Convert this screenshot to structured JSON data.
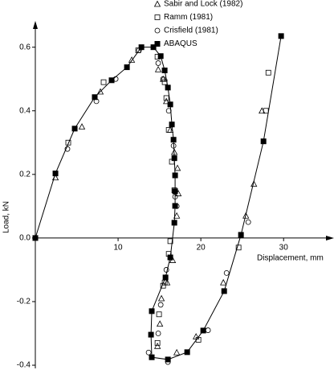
{
  "chart_data": {
    "type": "scatter",
    "xlabel": "Displacement, mm",
    "ylabel": "Load, kN",
    "xlim": [
      0,
      35.8
    ],
    "ylim": [
      -0.41,
      0.67
    ],
    "xticks": [
      10,
      20,
      30
    ],
    "yticks": [
      -0.4,
      -0.2,
      {
        "value": 0,
        "label": "0.0"
      },
      0.2,
      0.4,
      0.6
    ],
    "legend": "top-right",
    "series": [
      {
        "name": "Sabir and Lock (1982)",
        "marker": "triangle",
        "color": "#000000",
        "x": [
          2.43,
          5.63,
          7.86,
          11.65,
          14.85,
          15.44,
          15.83,
          16.31,
          16.8,
          17.18,
          17.28,
          17.09,
          16.6,
          15.92,
          15.24,
          15.05,
          14.76,
          17.09,
          19.42,
          22.72,
          25.44,
          26.41,
          27.38
        ],
        "values": [
          0.19,
          0.35,
          0.46,
          0.56,
          0.53,
          0.5,
          0.43,
          0.34,
          0.27,
          0.22,
          0.14,
          0.07,
          -0.07,
          -0.14,
          -0.19,
          -0.27,
          -0.34,
          -0.36,
          -0.31,
          -0.14,
          0.07,
          0.17,
          0.4
        ]
      },
      {
        "name": "Ramm (1981)",
        "marker": "square-open",
        "color": "#000000",
        "x": [
          3.98,
          8.25,
          12.43,
          14.76,
          15.63,
          15.83,
          16.12,
          16.5,
          16.8,
          16.31,
          16.12,
          15.63,
          15.44,
          14.95,
          14.76,
          19.71,
          24.56,
          27.86,
          28.16
        ],
        "values": [
          0.3,
          0.49,
          0.59,
          0.57,
          0.49,
          0.44,
          0.34,
          0.24,
          0.15,
          -0.01,
          -0.05,
          -0.14,
          -0.15,
          -0.24,
          -0.33,
          -0.32,
          -0.03,
          0.4,
          0.52
        ]
      },
      {
        "name": "Crisfield (1981)",
        "marker": "circle",
        "color": "#000000",
        "x": [
          3.88,
          7.38,
          9.71,
          12.52,
          14.85,
          15.44,
          16.12,
          16.7,
          16.89,
          17.09,
          15.83,
          15.15,
          14.85,
          13.69,
          16.02,
          20.87,
          23.11,
          25.73
        ],
        "values": [
          0.28,
          0.43,
          0.5,
          0.59,
          0.55,
          0.5,
          0.4,
          0.29,
          0.13,
          0.1,
          -0.1,
          -0.21,
          -0.3,
          -0.36,
          -0.39,
          -0.29,
          -0.11,
          0.05
        ]
      },
      {
        "name": "ABAQUS",
        "marker": "square-filled",
        "line": true,
        "color": "#000000",
        "x": [
          0,
          2.43,
          4.76,
          7.18,
          9.22,
          11.07,
          12.82,
          14.27,
          15.15,
          15.63,
          16.02,
          16.31,
          16.5,
          16.7,
          16.8,
          16.89,
          16.89,
          16.89,
          16.8,
          16.31,
          15.73,
          14.07,
          13.98,
          14.07,
          16.02,
          18.35,
          20.29,
          22.82,
          24.85,
          27.57,
          29.7
        ],
        "values": [
          0,
          0.203,
          0.344,
          0.443,
          0.496,
          0.537,
          0.6,
          0.6,
          0.572,
          0.527,
          0.473,
          0.42,
          0.357,
          0.309,
          0.251,
          0.197,
          0.147,
          0.101,
          0.048,
          -0.061,
          -0.124,
          -0.23,
          -0.304,
          -0.375,
          -0.382,
          -0.359,
          -0.291,
          -0.167,
          0.01,
          0.304,
          0.635
        ]
      }
    ]
  }
}
